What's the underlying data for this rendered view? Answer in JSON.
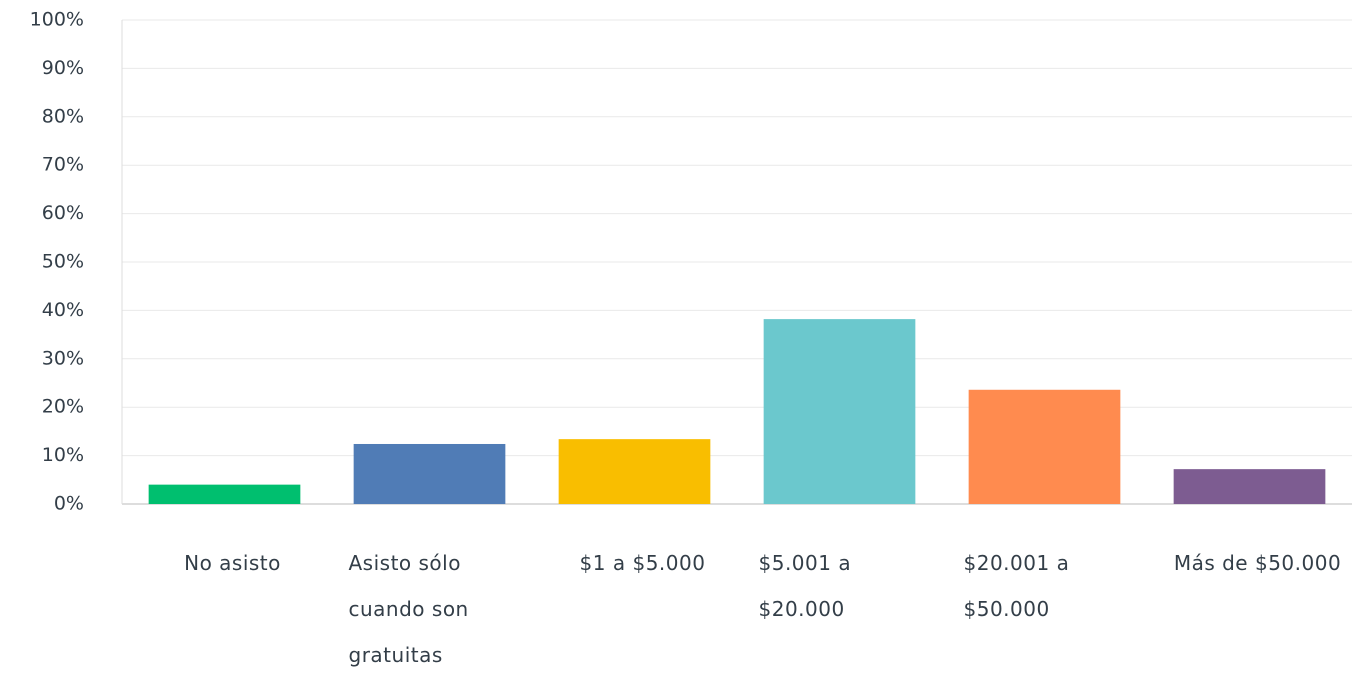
{
  "chart_data": {
    "type": "bar",
    "categories": [
      "No asisto",
      "Asisto sólo cuando son gratuitas",
      "$1 a $5.000",
      "$5.001 a $20.000",
      "$20.001 a $50.000",
      "Más de $50.000"
    ],
    "values": [
      4,
      12.4,
      13.4,
      38.2,
      23.6,
      7.2
    ],
    "colors": [
      "#00bf6f",
      "#507cb6",
      "#f9be00",
      "#6bc8cd",
      "#ff8b4f",
      "#7d5c91"
    ],
    "ylim": [
      0,
      100
    ],
    "yticks": [
      {
        "value": 0,
        "label": "0%"
      },
      {
        "value": 10,
        "label": "10%"
      },
      {
        "value": 20,
        "label": "20%"
      },
      {
        "value": 30,
        "label": "30%"
      },
      {
        "value": 40,
        "label": "40%"
      },
      {
        "value": 50,
        "label": "50%"
      },
      {
        "value": 60,
        "label": "60%"
      },
      {
        "value": 70,
        "label": "70%"
      },
      {
        "value": 80,
        "label": "80%"
      },
      {
        "value": 90,
        "label": "90%"
      },
      {
        "value": 100,
        "label": "100%"
      }
    ],
    "grid": true
  }
}
